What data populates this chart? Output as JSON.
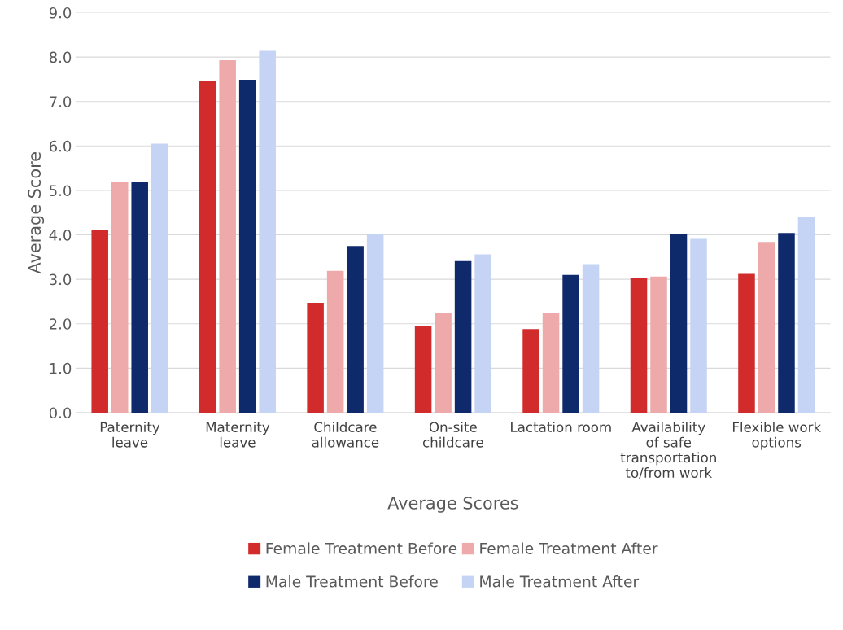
{
  "chart_data": {
    "type": "bar",
    "xlabel": "Average Scores",
    "ylabel": "Average Score",
    "categories": [
      "Paternity leave",
      "Maternity leave",
      "Childcare allowance",
      "On-site childcare",
      "Lactation room",
      "Availability of safe transportation to/from work",
      "Flexible work options"
    ],
    "series": [
      {
        "name": "Female Treatment Before",
        "color": "#d22b2b",
        "values": [
          4.1,
          7.47,
          2.47,
          1.96,
          1.88,
          3.03,
          3.12
        ]
      },
      {
        "name": "Female Treatment After",
        "color": "#eeaaaa",
        "values": [
          5.2,
          7.93,
          3.19,
          2.25,
          2.25,
          3.06,
          3.84
        ]
      },
      {
        "name": "Male Treatment Before",
        "color": "#0f2a6b",
        "values": [
          5.18,
          7.49,
          3.75,
          3.41,
          3.1,
          4.02,
          4.04
        ]
      },
      {
        "name": "Male Treatment After",
        "color": "#c5d4f5",
        "values": [
          6.05,
          8.14,
          4.02,
          3.56,
          3.34,
          3.91,
          4.41
        ]
      }
    ],
    "ylim": [
      0,
      9
    ],
    "yticks": [
      {
        "value": 0,
        "label": "0.0"
      },
      {
        "value": 1,
        "label": "1.0"
      },
      {
        "value": 2,
        "label": "2.0"
      },
      {
        "value": 3,
        "label": "3.0"
      },
      {
        "value": 4,
        "label": "4.0"
      },
      {
        "value": 5,
        "label": "5.0"
      },
      {
        "value": 6,
        "label": "6.0"
      },
      {
        "value": 7,
        "label": "7.0"
      },
      {
        "value": 8,
        "label": "8.0"
      },
      {
        "value": 9,
        "label": "9.0"
      }
    ],
    "grid": "y",
    "legend": "bottom"
  }
}
